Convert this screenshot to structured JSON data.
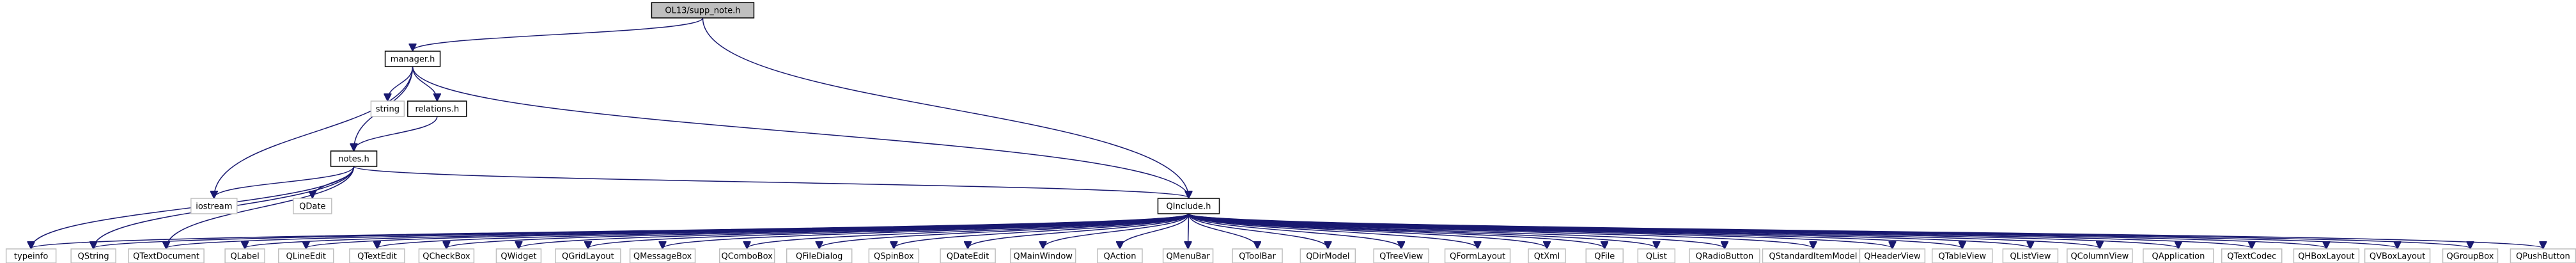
{
  "diagram": {
    "type": "include-dependency-graph",
    "edge_color": "#191970",
    "nodes": [
      {
        "id": "root",
        "label": "OL13/supp_note.h",
        "style": "root",
        "fill": "#bfbfbf"
      },
      {
        "id": "manager",
        "label": "manager.h",
        "style": "normal"
      },
      {
        "id": "string",
        "label": "string",
        "style": "missing"
      },
      {
        "id": "relations",
        "label": "relations.h",
        "style": "normal"
      },
      {
        "id": "notes",
        "label": "notes.h",
        "style": "normal"
      },
      {
        "id": "iostream",
        "label": "iostream",
        "style": "missing"
      },
      {
        "id": "QDate",
        "label": "QDate",
        "style": "missing"
      },
      {
        "id": "QInclude",
        "label": "QInclude.h",
        "style": "normal"
      },
      {
        "id": "typeinfo",
        "label": "typeinfo",
        "style": "missing"
      },
      {
        "id": "QString",
        "label": "QString",
        "style": "missing"
      },
      {
        "id": "QTextDocument",
        "label": "QTextDocument",
        "style": "missing"
      },
      {
        "id": "QLabel",
        "label": "QLabel",
        "style": "missing"
      },
      {
        "id": "QLineEdit",
        "label": "QLineEdit",
        "style": "missing"
      },
      {
        "id": "QTextEdit",
        "label": "QTextEdit",
        "style": "missing"
      },
      {
        "id": "QCheckBox",
        "label": "QCheckBox",
        "style": "missing"
      },
      {
        "id": "QWidget",
        "label": "QWidget",
        "style": "missing"
      },
      {
        "id": "QGridLayout",
        "label": "QGridLayout",
        "style": "missing"
      },
      {
        "id": "QMessageBox",
        "label": "QMessageBox",
        "style": "missing"
      },
      {
        "id": "QComboBox",
        "label": "QComboBox",
        "style": "missing"
      },
      {
        "id": "QFileDialog",
        "label": "QFileDialog",
        "style": "missing"
      },
      {
        "id": "QSpinBox",
        "label": "QSpinBox",
        "style": "missing"
      },
      {
        "id": "QDateEdit",
        "label": "QDateEdit",
        "style": "missing"
      },
      {
        "id": "QMainWindow",
        "label": "QMainWindow",
        "style": "missing"
      },
      {
        "id": "QAction",
        "label": "QAction",
        "style": "missing"
      },
      {
        "id": "QMenuBar",
        "label": "QMenuBar",
        "style": "missing"
      },
      {
        "id": "QToolBar",
        "label": "QToolBar",
        "style": "missing"
      },
      {
        "id": "QDirModel",
        "label": "QDirModel",
        "style": "missing"
      },
      {
        "id": "QTreeView",
        "label": "QTreeView",
        "style": "missing"
      },
      {
        "id": "QFormLayout",
        "label": "QFormLayout",
        "style": "missing"
      },
      {
        "id": "QtXml",
        "label": "QtXml",
        "style": "missing"
      },
      {
        "id": "QFile",
        "label": "QFile",
        "style": "missing"
      },
      {
        "id": "QList",
        "label": "QList",
        "style": "missing"
      },
      {
        "id": "QRadioButton",
        "label": "QRadioButton",
        "style": "missing"
      },
      {
        "id": "QStandardItemModel",
        "label": "QStandardItemModel",
        "style": "missing"
      },
      {
        "id": "QHeaderView",
        "label": "QHeaderView",
        "style": "missing"
      },
      {
        "id": "QTableView",
        "label": "QTableView",
        "style": "missing"
      },
      {
        "id": "QListView",
        "label": "QListView",
        "style": "missing"
      },
      {
        "id": "QColumnView",
        "label": "QColumnView",
        "style": "missing"
      },
      {
        "id": "QApplication",
        "label": "QApplication",
        "style": "missing"
      },
      {
        "id": "QTextCodec",
        "label": "QTextCodec",
        "style": "missing"
      },
      {
        "id": "QHBoxLayout",
        "label": "QHBoxLayout",
        "style": "missing"
      },
      {
        "id": "QVBoxLayout",
        "label": "QVBoxLayout",
        "style": "missing"
      },
      {
        "id": "QGroupBox",
        "label": "QGroupBox",
        "style": "missing"
      },
      {
        "id": "QPushButton",
        "label": "QPushButton",
        "style": "missing"
      }
    ],
    "edges": [
      [
        "root",
        "manager"
      ],
      [
        "root",
        "QInclude"
      ],
      [
        "manager",
        "string"
      ],
      [
        "manager",
        "relations"
      ],
      [
        "manager",
        "notes"
      ],
      [
        "manager",
        "iostream"
      ],
      [
        "manager",
        "QInclude"
      ],
      [
        "relations",
        "notes"
      ],
      [
        "notes",
        "iostream"
      ],
      [
        "notes",
        "QDate"
      ],
      [
        "notes",
        "QInclude"
      ],
      [
        "notes",
        "typeinfo"
      ],
      [
        "notes",
        "QString"
      ],
      [
        "notes",
        "QTextDocument"
      ],
      [
        "QInclude",
        "typeinfo"
      ],
      [
        "QInclude",
        "QString"
      ],
      [
        "QInclude",
        "QTextDocument"
      ],
      [
        "QInclude",
        "QLabel"
      ],
      [
        "QInclude",
        "QLineEdit"
      ],
      [
        "QInclude",
        "QTextEdit"
      ],
      [
        "QInclude",
        "QCheckBox"
      ],
      [
        "QInclude",
        "QWidget"
      ],
      [
        "QInclude",
        "QGridLayout"
      ],
      [
        "QInclude",
        "QMessageBox"
      ],
      [
        "QInclude",
        "QComboBox"
      ],
      [
        "QInclude",
        "QFileDialog"
      ],
      [
        "QInclude",
        "QSpinBox"
      ],
      [
        "QInclude",
        "QDateEdit"
      ],
      [
        "QInclude",
        "QMainWindow"
      ],
      [
        "QInclude",
        "QAction"
      ],
      [
        "QInclude",
        "QMenuBar"
      ],
      [
        "QInclude",
        "QToolBar"
      ],
      [
        "QInclude",
        "QDirModel"
      ],
      [
        "QInclude",
        "QTreeView"
      ],
      [
        "QInclude",
        "QFormLayout"
      ],
      [
        "QInclude",
        "QtXml"
      ],
      [
        "QInclude",
        "QFile"
      ],
      [
        "QInclude",
        "QList"
      ],
      [
        "QInclude",
        "QRadioButton"
      ],
      [
        "QInclude",
        "QStandardItemModel"
      ],
      [
        "QInclude",
        "QHeaderView"
      ],
      [
        "QInclude",
        "QTableView"
      ],
      [
        "QInclude",
        "QListView"
      ],
      [
        "QInclude",
        "QColumnView"
      ],
      [
        "QInclude",
        "QApplication"
      ],
      [
        "QInclude",
        "QTextCodec"
      ],
      [
        "QInclude",
        "QHBoxLayout"
      ],
      [
        "QInclude",
        "QVBoxLayout"
      ],
      [
        "QInclude",
        "QGroupBox"
      ],
      [
        "QInclude",
        "QPushButton"
      ]
    ]
  }
}
